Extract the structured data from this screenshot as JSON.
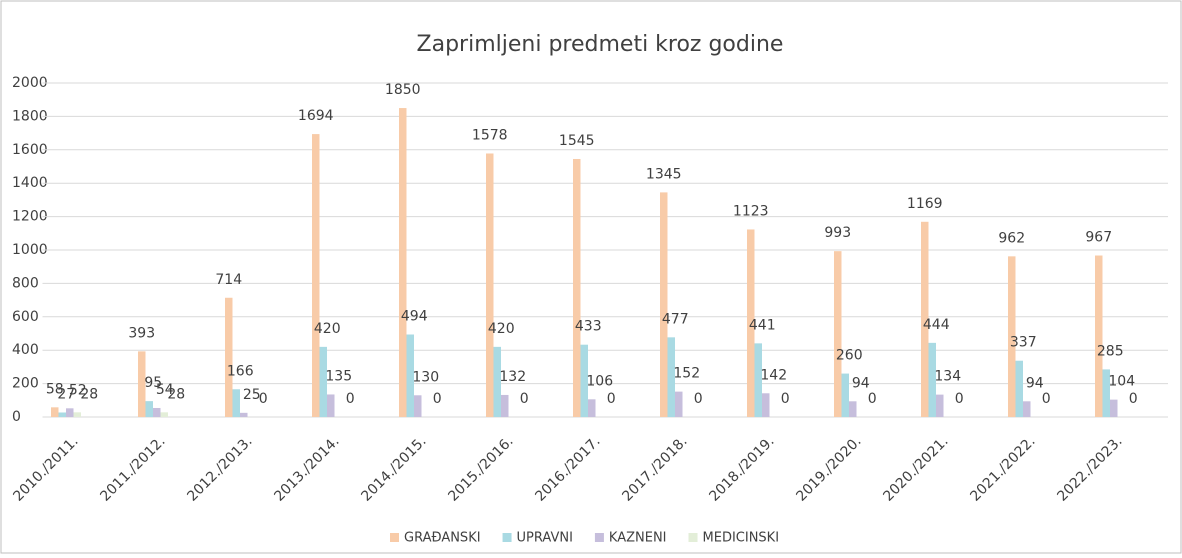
{
  "chart_data": {
    "type": "bar",
    "title": "Zaprimljeni predmeti kroz godine",
    "categories": [
      "2010./2011.",
      "2011./2012.",
      "2012./2013.",
      "2013./2014.",
      "2014./2015.",
      "2015./2016.",
      "2016./2017.",
      "2017./2018.",
      "2018./2019.",
      "2019./2020.",
      "2020./2021.",
      "2021./2022.",
      "2022./2023."
    ],
    "series": [
      {
        "name": "GRAĐANSKI",
        "color": "#f8cba8",
        "values": [
          58,
          393,
          714,
          1694,
          1850,
          1578,
          1545,
          1345,
          1123,
          993,
          1169,
          962,
          967
        ]
      },
      {
        "name": "UPRAVNI",
        "color": "#a9dae3",
        "values": [
          27,
          95,
          166,
          420,
          494,
          420,
          433,
          477,
          441,
          260,
          444,
          337,
          285
        ]
      },
      {
        "name": "KAZNENI",
        "color": "#c6bedc",
        "values": [
          52,
          54,
          25,
          135,
          130,
          132,
          106,
          152,
          142,
          94,
          134,
          94,
          104
        ]
      },
      {
        "name": "MEDICINSKI",
        "color": "#e3eed8",
        "values": [
          28,
          28,
          0,
          0,
          0,
          0,
          0,
          0,
          0,
          0,
          0,
          0,
          0
        ]
      }
    ],
    "ylim": [
      0,
      2000
    ],
    "yticks": [
      0,
      200,
      400,
      600,
      800,
      1000,
      1200,
      1400,
      1600,
      1800,
      2000
    ],
    "grid": true,
    "legend": "bottom"
  }
}
